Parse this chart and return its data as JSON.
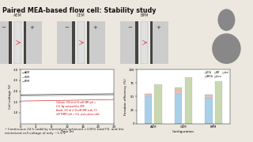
{
  "title": "Paired MEA-based flow cell: Stability study",
  "bg_color": "#ece8e0",
  "membrane_labels": [
    "AEM",
    "CEM",
    "BPM"
  ],
  "line_chart": {
    "xlabel": "Time (h)",
    "ylabel": "Cell voltage (V)",
    "ylim": [
      0.5,
      3.0
    ],
    "xlim": [
      0,
      24
    ],
    "xticks": [
      0,
      4,
      8,
      12,
      16,
      20,
      24
    ],
    "yticks": [
      1.0,
      1.5,
      2.0,
      2.5,
      3.0
    ],
    "legend": [
      "AEM",
      "CEM",
      "BPM"
    ],
    "line_colors": [
      "#333333",
      "#888888",
      "#cc3333"
    ],
    "annotation": "Cathode: 300 ml of 50 mM HMF (pH =\n8.2), Ag nanoparticles GDE;\nAnode: 100 ml of 15 mM HMF acids 7.5\nmM TEMPO (pH = 9.2), plain carbon cloth",
    "annotation_color": "#cc0000"
  },
  "bar_chart": {
    "xlabel": "Configuration",
    "ylabel": "Faradaic efficiency (%)",
    "ylim": [
      0,
      100
    ],
    "yticks": [
      0,
      25,
      50,
      75,
      100
    ],
    "categories": [
      "AEM",
      "CEM",
      "BPM"
    ],
    "legend_labels": [
      "FDCA",
      "HMFCA",
      "HMF",
      "others",
      "total"
    ],
    "legend_colors": [
      "#a8d0e8",
      "#e8c0b8",
      "#c8d8a0",
      "#d0c8b8",
      "#c8d8b0"
    ],
    "stacked_aem": [
      50,
      5,
      0,
      0
    ],
    "stacked_cem": [
      55,
      8,
      3,
      0
    ],
    "stacked_bpm": [
      48,
      5,
      0,
      0
    ],
    "total_aem": 72,
    "total_cem": 85,
    "total_bpm": 78,
    "stack_colors": [
      "#a8d0e8",
      "#e8c0b8",
      "#c8d8a0",
      "#d0c8b8"
    ],
    "total_color": "#c8d8b0"
  },
  "bullet": "Continuous 24 h stability electrolysis achieved >130% total FE, and the\nminimized cell voltage of only ~1.5 V",
  "photo_bg": "#b0b8c0",
  "chart_bg": "#ffffff",
  "mem_box_color": "#d8d0c8",
  "mem_stripe1": "#555555",
  "mem_stripe2": "#999999"
}
